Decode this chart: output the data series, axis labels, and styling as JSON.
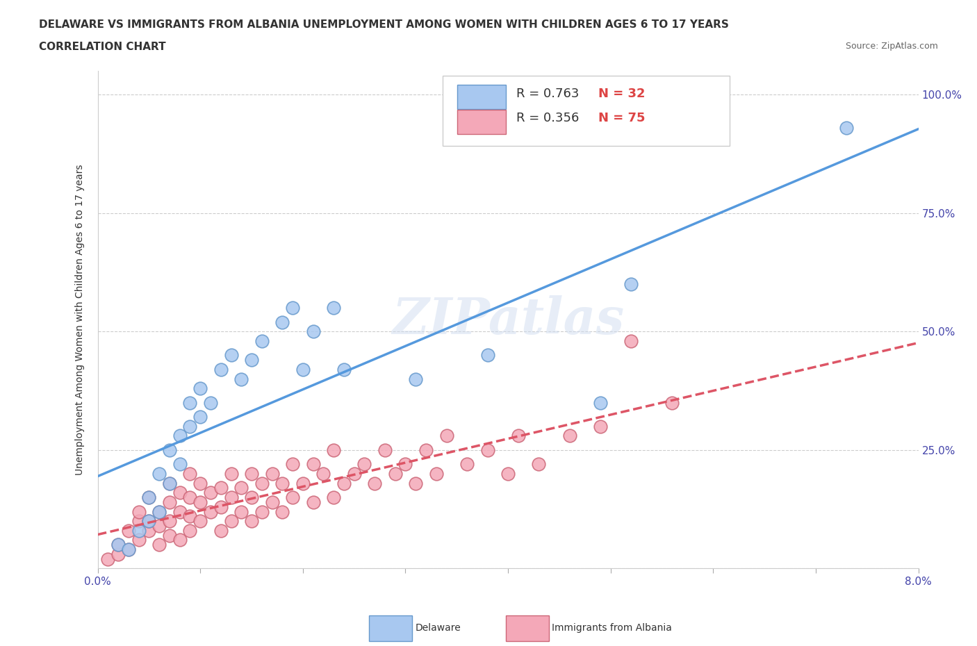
{
  "title_line1": "DELAWARE VS IMMIGRANTS FROM ALBANIA UNEMPLOYMENT AMONG WOMEN WITH CHILDREN AGES 6 TO 17 YEARS",
  "title_line2": "CORRELATION CHART",
  "source_text": "Source: ZipAtlas.com",
  "xlabel": "",
  "ylabel": "Unemployment Among Women with Children Ages 6 to 17 years",
  "xlim": [
    0.0,
    0.08
  ],
  "ylim": [
    0.0,
    1.05
  ],
  "xticks": [
    0.0,
    0.01,
    0.02,
    0.03,
    0.04,
    0.05,
    0.06,
    0.07,
    0.08
  ],
  "xticklabels": [
    "0.0%",
    "",
    "",
    "",
    "",
    "",
    "",
    "",
    "8.0%"
  ],
  "ytick_positions": [
    0.0,
    0.25,
    0.5,
    0.75,
    1.0
  ],
  "ytick_labels": [
    "",
    "25.0%",
    "50.0%",
    "75.0%",
    "100.0%"
  ],
  "delaware_color": "#a8c8f0",
  "delaware_edge_color": "#6699cc",
  "albania_color": "#f4a8b8",
  "albania_edge_color": "#cc6677",
  "delaware_line_color": "#5599dd",
  "albania_line_color": "#dd5566",
  "r_delaware": 0.763,
  "n_delaware": 32,
  "r_albania": 0.356,
  "n_albania": 75,
  "watermark": "ZIPatlas",
  "legend_delaware": "Delaware",
  "legend_albania": "Immigrants from Albania",
  "delaware_scatter_x": [
    0.002,
    0.003,
    0.004,
    0.005,
    0.005,
    0.006,
    0.006,
    0.007,
    0.007,
    0.008,
    0.008,
    0.009,
    0.009,
    0.01,
    0.01,
    0.011,
    0.012,
    0.013,
    0.014,
    0.015,
    0.016,
    0.018,
    0.019,
    0.02,
    0.021,
    0.023,
    0.024,
    0.031,
    0.038,
    0.049,
    0.052,
    0.073
  ],
  "delaware_scatter_y": [
    0.05,
    0.04,
    0.08,
    0.1,
    0.15,
    0.12,
    0.2,
    0.18,
    0.25,
    0.22,
    0.28,
    0.3,
    0.35,
    0.32,
    0.38,
    0.35,
    0.42,
    0.45,
    0.4,
    0.44,
    0.48,
    0.52,
    0.55,
    0.42,
    0.5,
    0.55,
    0.42,
    0.4,
    0.45,
    0.35,
    0.6,
    0.93
  ],
  "albania_scatter_x": [
    0.001,
    0.002,
    0.002,
    0.003,
    0.003,
    0.004,
    0.004,
    0.004,
    0.005,
    0.005,
    0.005,
    0.006,
    0.006,
    0.006,
    0.007,
    0.007,
    0.007,
    0.007,
    0.008,
    0.008,
    0.008,
    0.009,
    0.009,
    0.009,
    0.009,
    0.01,
    0.01,
    0.01,
    0.011,
    0.011,
    0.012,
    0.012,
    0.012,
    0.013,
    0.013,
    0.013,
    0.014,
    0.014,
    0.015,
    0.015,
    0.015,
    0.016,
    0.016,
    0.017,
    0.017,
    0.018,
    0.018,
    0.019,
    0.019,
    0.02,
    0.021,
    0.021,
    0.022,
    0.023,
    0.023,
    0.024,
    0.025,
    0.026,
    0.027,
    0.028,
    0.029,
    0.03,
    0.031,
    0.032,
    0.033,
    0.034,
    0.036,
    0.038,
    0.04,
    0.041,
    0.043,
    0.046,
    0.049,
    0.052,
    0.056
  ],
  "albania_scatter_y": [
    0.02,
    0.03,
    0.05,
    0.04,
    0.08,
    0.06,
    0.1,
    0.12,
    0.08,
    0.1,
    0.15,
    0.05,
    0.09,
    0.12,
    0.07,
    0.1,
    0.14,
    0.18,
    0.06,
    0.12,
    0.16,
    0.08,
    0.11,
    0.15,
    0.2,
    0.1,
    0.14,
    0.18,
    0.12,
    0.16,
    0.08,
    0.13,
    0.17,
    0.1,
    0.15,
    0.2,
    0.12,
    0.17,
    0.1,
    0.15,
    0.2,
    0.12,
    0.18,
    0.14,
    0.2,
    0.12,
    0.18,
    0.15,
    0.22,
    0.18,
    0.14,
    0.22,
    0.2,
    0.15,
    0.25,
    0.18,
    0.2,
    0.22,
    0.18,
    0.25,
    0.2,
    0.22,
    0.18,
    0.25,
    0.2,
    0.28,
    0.22,
    0.25,
    0.2,
    0.28,
    0.22,
    0.28,
    0.3,
    0.48,
    0.35
  ]
}
